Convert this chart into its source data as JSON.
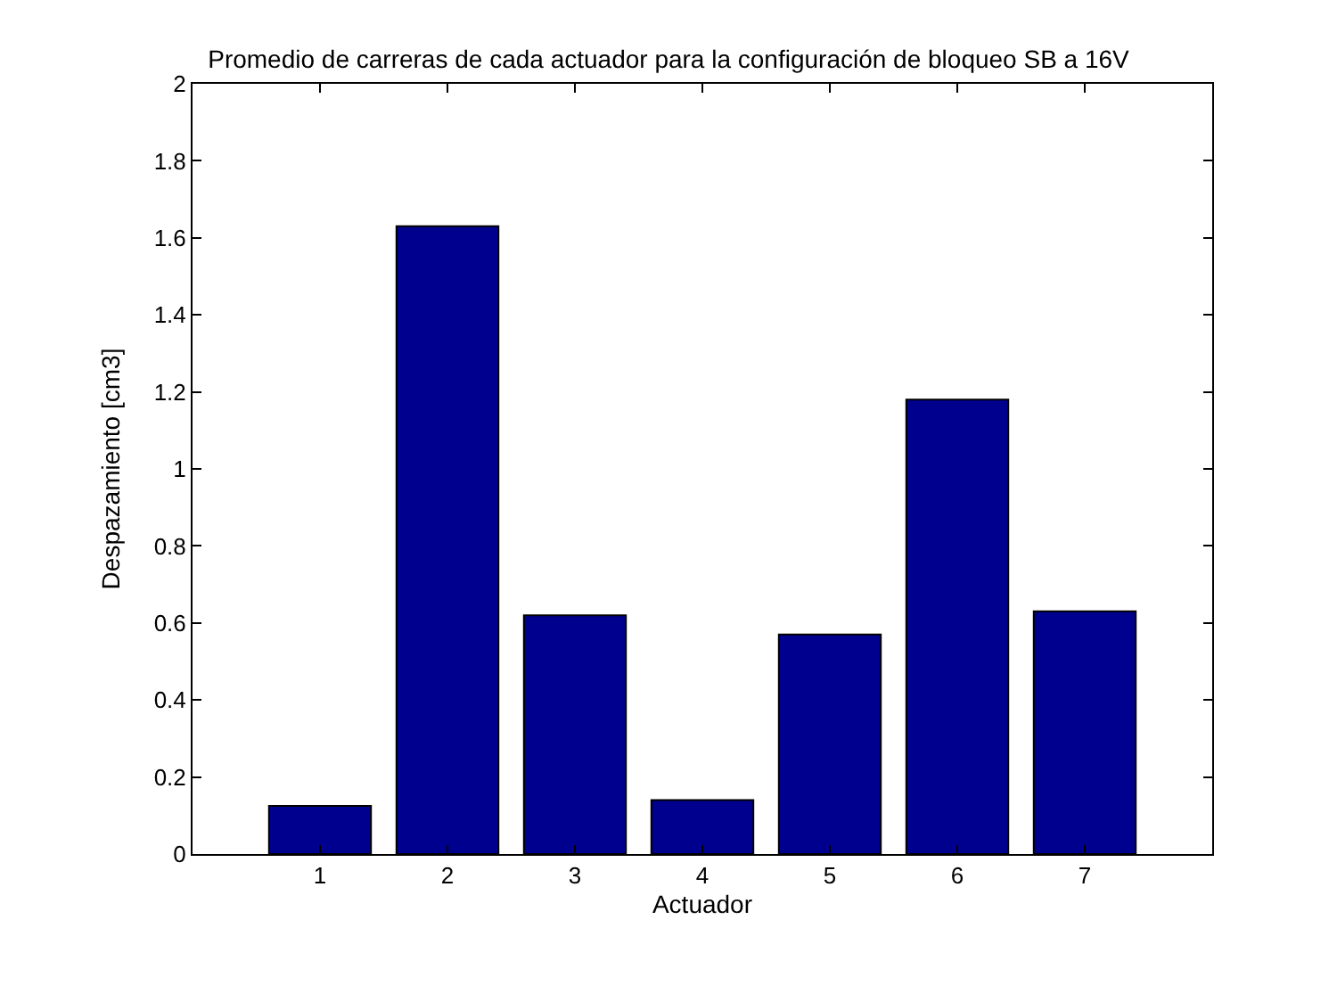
{
  "chart_data": {
    "type": "bar",
    "title": "Promedio de carreras de cada actuador para la configuración de bloqueo SB a 16V",
    "xlabel": "Actuador",
    "ylabel": "Despazamiento [cm3]",
    "x": [
      1,
      2,
      3,
      4,
      5,
      6,
      7
    ],
    "values": [
      0.125,
      1.63,
      0.62,
      0.14,
      0.57,
      1.18,
      0.63
    ],
    "color": "#00008f",
    "xlim": [
      0,
      8
    ],
    "xticks": [
      1,
      2,
      3,
      4,
      5,
      6,
      7
    ],
    "ylim": [
      0,
      2
    ],
    "yticks": [
      0,
      0.2,
      0.4,
      0.6,
      0.8,
      1,
      1.2,
      1.4,
      1.6,
      1.8,
      2
    ],
    "legend": false
  }
}
